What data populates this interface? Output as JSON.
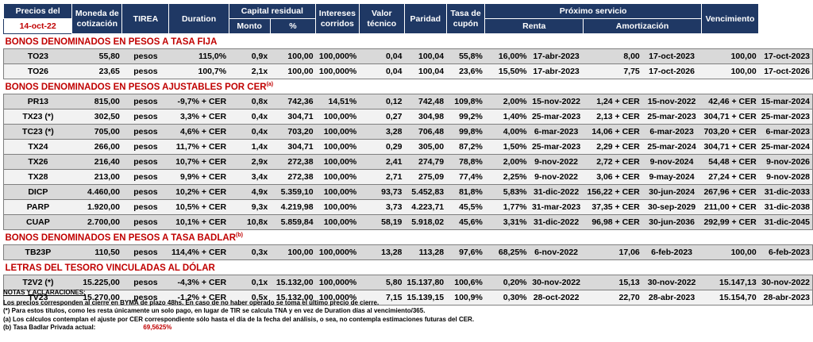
{
  "header": {
    "precios_del": "Precios del",
    "date": "14-oct-22",
    "moneda": "Moneda de cotización",
    "tirea": "TIREA",
    "duration": "Duration",
    "capital_residual": "Capital residual",
    "monto": "Monto",
    "pct": "%",
    "intereses": "Intereses corridos",
    "valor_tecnico": "Valor técnico",
    "paridad": "Paridad",
    "tasa_cupon": "Tasa de cupón",
    "proximo_servicio": "Próximo servicio",
    "renta": "Renta",
    "amortizacion": "Amortización",
    "vencimiento": "Vencimiento"
  },
  "sections": [
    {
      "title": "BONOS DENOMINADOS EN PESOS A TASA FIJA",
      "note": "",
      "rows": [
        {
          "ticker": "TO23",
          "price": "55,80",
          "currency": "pesos",
          "tirea": "115,0%",
          "duration": "0,9x",
          "monto": "100,00",
          "pct": "100,000%",
          "intereses": "0,04",
          "valor": "100,04",
          "paridad": "55,8%",
          "cupon": "16,00%",
          "renta_fecha": "17-abr-2023",
          "renta": "8,00",
          "amort_fecha": "17-oct-2023",
          "amort": "100,00",
          "venc": "17-oct-2023"
        },
        {
          "ticker": "TO26",
          "price": "23,65",
          "currency": "pesos",
          "tirea": "100,7%",
          "duration": "2,1x",
          "monto": "100,00",
          "pct": "100,000%",
          "intereses": "0,04",
          "valor": "100,04",
          "paridad": "23,6%",
          "cupon": "15,50%",
          "renta_fecha": "17-abr-2023",
          "renta": "7,75",
          "amort_fecha": "17-oct-2026",
          "amort": "100,00",
          "venc": "17-oct-2026"
        }
      ]
    },
    {
      "title": "BONOS DENOMINADOS EN PESOS AJUSTABLES POR CER",
      "note": "(a)",
      "rows": [
        {
          "ticker": "PR13",
          "price": "815,00",
          "currency": "pesos",
          "tirea": "-9,7% + CER",
          "duration": "0,8x",
          "monto": "742,36",
          "pct": "14,51%",
          "intereses": "0,12",
          "valor": "742,48",
          "paridad": "109,8%",
          "cupon": "2,00%",
          "renta_fecha": "15-nov-2022",
          "renta": "1,24 + CER",
          "amort_fecha": "15-nov-2022",
          "amort": "42,46 + CER",
          "venc": "15-mar-2024"
        },
        {
          "ticker": "TX23 (*)",
          "price": "302,50",
          "currency": "pesos",
          "tirea": "3,3% + CER",
          "duration": "0,4x",
          "monto": "304,71",
          "pct": "100,00%",
          "intereses": "0,27",
          "valor": "304,98",
          "paridad": "99,2%",
          "cupon": "1,40%",
          "renta_fecha": "25-mar-2023",
          "renta": "2,13 + CER",
          "amort_fecha": "25-mar-2023",
          "amort": "304,71 + CER",
          "venc": "25-mar-2023"
        },
        {
          "ticker": "TC23 (*)",
          "price": "705,00",
          "currency": "pesos",
          "tirea": "4,6% + CER",
          "duration": "0,4x",
          "monto": "703,20",
          "pct": "100,00%",
          "intereses": "3,28",
          "valor": "706,48",
          "paridad": "99,8%",
          "cupon": "4,00%",
          "renta_fecha": "6-mar-2023",
          "renta": "14,06 + CER",
          "amort_fecha": "6-mar-2023",
          "amort": "703,20 + CER",
          "venc": "6-mar-2023"
        },
        {
          "ticker": "TX24",
          "price": "266,00",
          "currency": "pesos",
          "tirea": "11,7% + CER",
          "duration": "1,4x",
          "monto": "304,71",
          "pct": "100,00%",
          "intereses": "0,29",
          "valor": "305,00",
          "paridad": "87,2%",
          "cupon": "1,50%",
          "renta_fecha": "25-mar-2023",
          "renta": "2,29 + CER",
          "amort_fecha": "25-mar-2024",
          "amort": "304,71 + CER",
          "venc": "25-mar-2024"
        },
        {
          "ticker": "TX26",
          "price": "216,40",
          "currency": "pesos",
          "tirea": "10,7% + CER",
          "duration": "2,9x",
          "monto": "272,38",
          "pct": "100,00%",
          "intereses": "2,41",
          "valor": "274,79",
          "paridad": "78,8%",
          "cupon": "2,00%",
          "renta_fecha": "9-nov-2022",
          "renta": "2,72 + CER",
          "amort_fecha": "9-nov-2024",
          "amort": "54,48 + CER",
          "venc": "9-nov-2026"
        },
        {
          "ticker": "TX28",
          "price": "213,00",
          "currency": "pesos",
          "tirea": "9,9% + CER",
          "duration": "3,4x",
          "monto": "272,38",
          "pct": "100,00%",
          "intereses": "2,71",
          "valor": "275,09",
          "paridad": "77,4%",
          "cupon": "2,25%",
          "renta_fecha": "9-nov-2022",
          "renta": "3,06 + CER",
          "amort_fecha": "9-may-2024",
          "amort": "27,24 + CER",
          "venc": "9-nov-2028"
        },
        {
          "ticker": "DICP",
          "price": "4.460,00",
          "currency": "pesos",
          "tirea": "10,2% + CER",
          "duration": "4,9x",
          "monto": "5.359,10",
          "pct": "100,00%",
          "intereses": "93,73",
          "valor": "5.452,83",
          "paridad": "81,8%",
          "cupon": "5,83%",
          "renta_fecha": "31-dic-2022",
          "renta": "156,22 + CER",
          "amort_fecha": "30-jun-2024",
          "amort": "267,96 + CER",
          "venc": "31-dic-2033"
        },
        {
          "ticker": "PARP",
          "price": "1.920,00",
          "currency": "pesos",
          "tirea": "10,5% + CER",
          "duration": "9,3x",
          "monto": "4.219,98",
          "pct": "100,00%",
          "intereses": "3,73",
          "valor": "4.223,71",
          "paridad": "45,5%",
          "cupon": "1,77%",
          "renta_fecha": "31-mar-2023",
          "renta": "37,35 + CER",
          "amort_fecha": "30-sep-2029",
          "amort": "211,00 + CER",
          "venc": "31-dic-2038"
        },
        {
          "ticker": "CUAP",
          "price": "2.700,00",
          "currency": "pesos",
          "tirea": "10,1% + CER",
          "duration": "10,8x",
          "monto": "5.859,84",
          "pct": "100,00%",
          "intereses": "58,19",
          "valor": "5.918,02",
          "paridad": "45,6%",
          "cupon": "3,31%",
          "renta_fecha": "31-dic-2022",
          "renta": "96,98 + CER",
          "amort_fecha": "30-jun-2036",
          "amort": "292,99 + CER",
          "venc": "31-dic-2045"
        }
      ]
    },
    {
      "title": "BONOS DENOMINADOS EN PESOS A TASA BADLAR",
      "note": "(b)",
      "rows": [
        {
          "ticker": "TB23P",
          "price": "110,50",
          "currency": "pesos",
          "tirea": "114,4% + CER",
          "duration": "0,3x",
          "monto": "100,00",
          "pct": "100,000%",
          "intereses": "13,28",
          "valor": "113,28",
          "paridad": "97,6%",
          "cupon": "68,25%",
          "renta_fecha": "6-nov-2022",
          "renta": "17,06",
          "amort_fecha": "6-feb-2023",
          "amort": "100,00",
          "venc": "6-feb-2023"
        }
      ]
    },
    {
      "title": "LETRAS DEL TESORO VINCULADAS AL DÓLAR",
      "note": "",
      "rows": [
        {
          "ticker": "T2V2 (*)",
          "price": "15.225,00",
          "currency": "pesos",
          "tirea": "-4,3% + CER",
          "duration": "0,1x",
          "monto": "15.132,00",
          "pct": "100,000%",
          "intereses": "5,80",
          "valor": "15.137,80",
          "paridad": "100,6%",
          "cupon": "0,20%",
          "renta_fecha": "30-nov-2022",
          "renta": "15,13",
          "amort_fecha": "30-nov-2022",
          "amort": "15.147,13",
          "venc": "30-nov-2022"
        },
        {
          "ticker": "TV23",
          "price": "15.270,00",
          "currency": "pesos",
          "tirea": "-1,2% + CER",
          "duration": "0,5x",
          "monto": "15.132,00",
          "pct": "100,000%",
          "intereses": "7,15",
          "valor": "15.139,15",
          "paridad": "100,9%",
          "cupon": "0,30%",
          "renta_fecha": "28-oct-2022",
          "renta": "22,70",
          "amort_fecha": "28-abr-2023",
          "amort": "15.154,70",
          "venc": "28-abr-2023"
        }
      ]
    }
  ],
  "notes": {
    "title": "NOTAS Y ACLARACIONES:",
    "line1": "Los precios corresponden al cierre en BYMA de plazo 48hs. En caso de no haber operado se toma el último precio de cierre.",
    "line2": "(*) Para estos títulos,  como les resta únicamente un solo pago, en lugar de TIR se calcula TNA y en vez de Duration días al vencimiento/365.",
    "line3": "(a) Los cálculos contemplan el ajuste por CER correspondiente sólo hasta el día de la fecha del análisis, o sea, no contempla estimaciones futuras del CER.",
    "line4_label": "(b) Tasa Badlar Privada actual:",
    "line4_value": "69,5625%"
  },
  "colors": {
    "header_bg": "#1f3864",
    "section_title": "#c00000",
    "row_dark": "#d9d9d9",
    "row_light": "#f2f2f2"
  }
}
